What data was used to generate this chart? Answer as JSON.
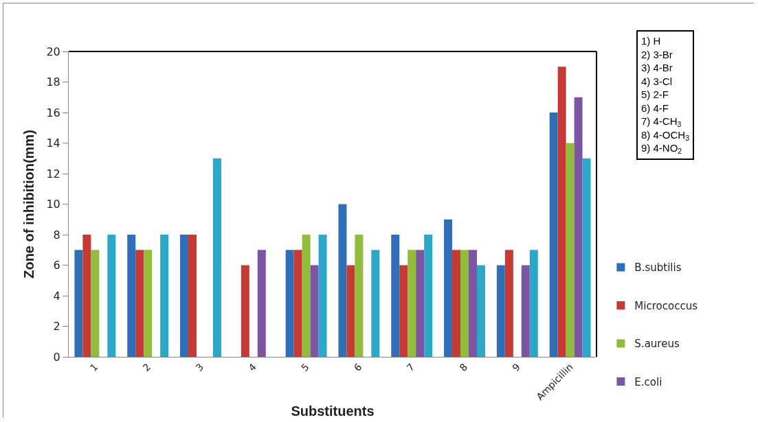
{
  "chart_data": {
    "type": "bar",
    "xlabel": "Substituents",
    "ylabel": "Zone of inhibition(mm)",
    "categories": [
      "1",
      "2",
      "3",
      "4",
      "5",
      "6",
      "7",
      "8",
      "9",
      "Ampicillin"
    ],
    "series": [
      {
        "name": "B.subtilis",
        "color": "#2f6fb8",
        "values": [
          7,
          8,
          8,
          null,
          7,
          10,
          8,
          9,
          6,
          16
        ]
      },
      {
        "name": "Micrococcus",
        "color": "#c63a36",
        "values": [
          8,
          7,
          8,
          6,
          7,
          6,
          6,
          7,
          7,
          19
        ]
      },
      {
        "name": "S.aureus",
        "color": "#92bc3c",
        "values": [
          7,
          7,
          null,
          null,
          8,
          8,
          7,
          7,
          null,
          14
        ]
      },
      {
        "name": "E.coli",
        "color": "#7c55a3",
        "values": [
          null,
          null,
          null,
          7,
          6,
          null,
          7,
          7,
          6,
          17
        ]
      },
      {
        "color": "#2aa7c9",
        "values": [
          8,
          8,
          13,
          null,
          8,
          7,
          8,
          6,
          7,
          13
        ]
      }
    ],
    "ylim": [
      0,
      20
    ],
    "yticks": [
      0,
      2,
      4,
      6,
      8,
      10,
      12,
      14,
      16,
      18,
      20
    ],
    "grid": false,
    "legend": "right",
    "annotations": [
      "1) H",
      "2) 3-Br",
      "3) 4-Br",
      "4) 3-Cl",
      "5) 2-F",
      "6) 4-F",
      "7) 4-CH$_{3}$",
      "8) 4-OCH$_{3}$",
      "9) 4-NO$_{2}$"
    ]
  }
}
